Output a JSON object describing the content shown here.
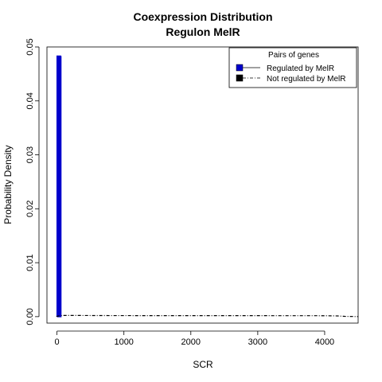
{
  "chart_data": {
    "type": "line",
    "title": "Coexpression Distribution",
    "subtitle": "Regulon MelR",
    "xlabel": "SCR",
    "ylabel": "Probability Density",
    "xlim": [
      -150,
      4500
    ],
    "ylim": [
      -0.0012,
      0.05
    ],
    "x_ticks": [
      0,
      1000,
      2000,
      3000,
      4000
    ],
    "x_tick_labels": [
      "0",
      "1000",
      "2000",
      "3000",
      "4000"
    ],
    "y_ticks": [
      0.0,
      0.01,
      0.02,
      0.03,
      0.04,
      0.05
    ],
    "y_tick_labels": [
      "0.00",
      "0.01",
      "0.02",
      "0.03",
      "0.04",
      "0.05"
    ],
    "grid": false,
    "legend": {
      "title": "Pairs of genes",
      "placement": "top-right",
      "entries": [
        "Regulated by  MelR",
        "Not regulated by  MelR"
      ]
    },
    "series": [
      {
        "name": "Regulated by  MelR",
        "color": "#0000cc",
        "line_style": "solid",
        "x": [
          0,
          2,
          2,
          14,
          14,
          28,
          28,
          44,
          44,
          58,
          58,
          62
        ],
        "y": [
          0,
          0,
          0.0483,
          0.0483,
          0,
          0,
          0.0483,
          0.0483,
          0,
          0,
          0.0483,
          0.0483
        ]
      },
      {
        "name": "Not regulated by  MelR",
        "color": "#000000",
        "line_style": "dotdash",
        "x": [
          -10,
          60,
          100,
          300,
          600,
          1000,
          2000,
          3000,
          4000,
          4200,
          4300,
          4500
        ],
        "y": [
          5e-05,
          0.0002,
          0.00022,
          0.00022,
          0.0002,
          0.00019,
          0.00018,
          0.00018,
          0.00017,
          0.00013,
          5e-05,
          1e-05
        ]
      }
    ]
  }
}
